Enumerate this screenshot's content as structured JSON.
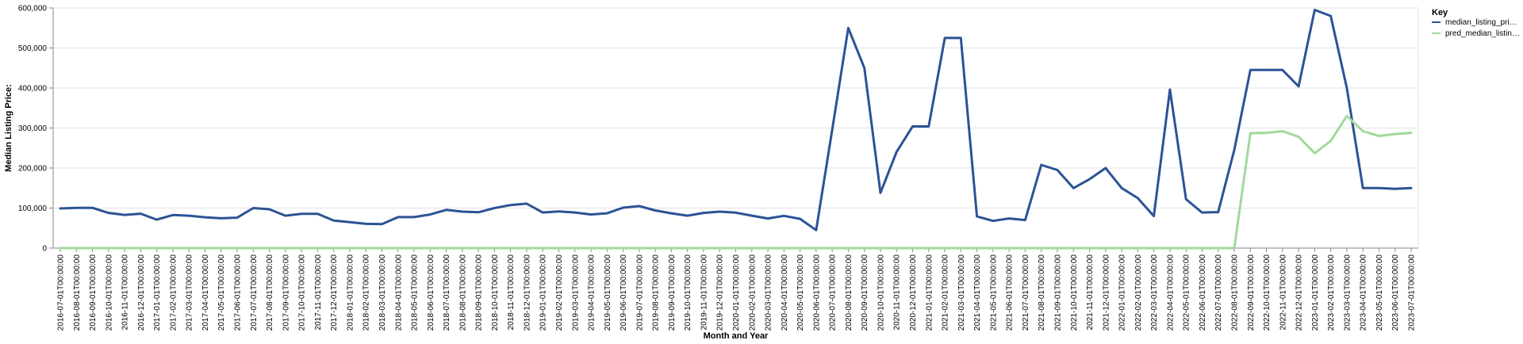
{
  "chart_data": {
    "type": "line",
    "xlabel": "Month and Year",
    "ylabel": "Median Listing Price:",
    "ylim": [
      0,
      600000
    ],
    "yticks": [
      0,
      100000,
      200000,
      300000,
      400000,
      500000,
      600000
    ],
    "ytick_labels": [
      "0",
      "100,000",
      "200,000",
      "300,000",
      "400,000",
      "500,000",
      "600,000"
    ],
    "grid": true,
    "legend": {
      "title": "Key",
      "position": "right"
    },
    "categories": [
      "2016-07-01T00:00:00",
      "2016-08-01T00:00:00",
      "2016-09-01T00:00:00",
      "2016-10-01T00:00:00",
      "2016-11-01T00:00:00",
      "2016-12-01T00:00:00",
      "2017-01-01T00:00:00",
      "2017-02-01T00:00:00",
      "2017-03-01T00:00:00",
      "2017-04-01T00:00:00",
      "2017-05-01T00:00:00",
      "2017-06-01T00:00:00",
      "2017-07-01T00:00:00",
      "2017-08-01T00:00:00",
      "2017-09-01T00:00:00",
      "2017-10-01T00:00:00",
      "2017-11-01T00:00:00",
      "2017-12-01T00:00:00",
      "2018-01-01T00:00:00",
      "2018-02-01T00:00:00",
      "2018-03-01T00:00:00",
      "2018-04-01T00:00:00",
      "2018-05-01T00:00:00",
      "2018-06-01T00:00:00",
      "2018-07-01T00:00:00",
      "2018-08-01T00:00:00",
      "2018-09-01T00:00:00",
      "2018-10-01T00:00:00",
      "2018-11-01T00:00:00",
      "2018-12-01T00:00:00",
      "2019-01-01T00:00:00",
      "2019-02-01T00:00:00",
      "2019-03-01T00:00:00",
      "2019-04-01T00:00:00",
      "2019-05-01T00:00:00",
      "2019-06-01T00:00:00",
      "2019-07-01T00:00:00",
      "2019-08-01T00:00:00",
      "2019-09-01T00:00:00",
      "2019-10-01T00:00:00",
      "2019-11-01T00:00:00",
      "2019-12-01T00:00:00",
      "2020-01-01T00:00:00",
      "2020-02-01T00:00:00",
      "2020-03-01T00:00:00",
      "2020-04-01T00:00:00",
      "2020-05-01T00:00:00",
      "2020-06-01T00:00:00",
      "2020-07-01T00:00:00",
      "2020-08-01T00:00:00",
      "2020-09-01T00:00:00",
      "2020-10-01T00:00:00",
      "2020-11-01T00:00:00",
      "2020-12-01T00:00:00",
      "2021-01-01T00:00:00",
      "2021-02-01T00:00:00",
      "2021-03-01T00:00:00",
      "2021-04-01T00:00:00",
      "2021-05-01T00:00:00",
      "2021-06-01T00:00:00",
      "2021-07-01T00:00:00",
      "2021-08-01T00:00:00",
      "2021-09-01T00:00:00",
      "2021-10-01T00:00:00",
      "2021-11-01T00:00:00",
      "2021-12-01T00:00:00",
      "2022-01-01T00:00:00",
      "2022-02-01T00:00:00",
      "2022-03-01T00:00:00",
      "2022-04-01T00:00:00",
      "2022-05-01T00:00:00",
      "2022-06-01T00:00:00",
      "2022-07-01T00:00:00",
      "2022-08-01T00:00:00",
      "2022-09-01T00:00:00",
      "2022-10-01T00:00:00",
      "2022-11-01T00:00:00",
      "2022-12-01T00:00:00",
      "2023-01-01T00:00:00",
      "2023-02-01T00:00:00",
      "2023-03-01T00:00:00",
      "2023-04-01T00:00:00",
      "2023-05-01T00:00:00",
      "2023-06-01T00:00:00",
      "2023-07-01T00:00:00"
    ],
    "series": [
      {
        "name": "median_listing_pri…",
        "color": "#2b5396",
        "values": [
          99000,
          100500,
          100500,
          88000,
          83000,
          86000,
          71000,
          82500,
          81000,
          77000,
          74500,
          76000,
          100000,
          97000,
          81000,
          85500,
          85500,
          69000,
          65000,
          60500,
          60000,
          77500,
          77500,
          84000,
          95500,
          91000,
          89500,
          100000,
          107500,
          111000,
          89000,
          91500,
          89000,
          84000,
          87000,
          101000,
          105000,
          94000,
          87000,
          81000,
          88000,
          91000,
          88500,
          81000,
          74000,
          80500,
          73000,
          45000,
          295000,
          550000,
          450000,
          138000,
          240000,
          304000,
          304000,
          525000,
          525000,
          79000,
          68000,
          74000,
          70000,
          208000,
          195000,
          150000,
          172000,
          200000,
          150000,
          125000,
          80000,
          396000,
          122000,
          89000,
          90000,
          245000,
          445000,
          445000,
          445000,
          404000,
          595000,
          580000,
          400000,
          150000,
          150000,
          148000,
          150000
        ]
      },
      {
        "name": "pred_median_listin…",
        "color": "#a1d99b",
        "values": [
          0,
          0,
          0,
          0,
          0,
          0,
          0,
          0,
          0,
          0,
          0,
          0,
          0,
          0,
          0,
          0,
          0,
          0,
          0,
          0,
          0,
          0,
          0,
          0,
          0,
          0,
          0,
          0,
          0,
          0,
          0,
          0,
          0,
          0,
          0,
          0,
          0,
          0,
          0,
          0,
          0,
          0,
          0,
          0,
          0,
          0,
          0,
          0,
          0,
          0,
          0,
          0,
          0,
          0,
          0,
          0,
          0,
          0,
          0,
          0,
          0,
          0,
          0,
          0,
          0,
          0,
          0,
          0,
          0,
          0,
          0,
          0,
          0,
          0,
          287000,
          288000,
          292000,
          278000,
          237000,
          268000,
          330000,
          292000,
          280000,
          285000,
          288000
        ]
      }
    ]
  }
}
